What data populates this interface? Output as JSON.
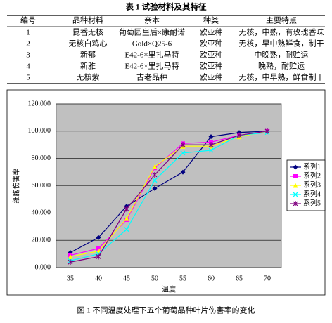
{
  "table": {
    "caption": "表 1  试验材料及其特征",
    "header": [
      "编号",
      "品种材料",
      "亲本",
      "种类",
      "主要特点"
    ],
    "rows": [
      [
        "1",
        "昆香无核",
        "葡萄园皇后×康耐诺",
        "欧亚种",
        "无核，中熟，有玫瑰香味"
      ],
      [
        "2",
        "无核白鸡心",
        "Gold×Q25-6",
        "欧亚种",
        "无核，早中熟鲜食，制干"
      ],
      [
        "3",
        "新郁",
        "E42-6×里扎马特",
        "欧亚种",
        "中晚熟，耐贮运"
      ],
      [
        "4",
        "新雅",
        "E42-6×里扎马特",
        "欧亚种",
        "晚熟，耐贮运"
      ],
      [
        "5",
        "无核紫",
        "古老品种",
        "欧亚种",
        "无核，中早熟，鲜食制干"
      ]
    ]
  },
  "chart_data": {
    "type": "line",
    "x_label": "温度",
    "y_label": "细胞伤害率",
    "categories": [
      "35",
      "40",
      "45",
      "50",
      "55",
      "60",
      "65",
      "70"
    ],
    "ylim": [
      0,
      120
    ],
    "yticks": [
      {
        "value": 0,
        "label": "0.000"
      },
      {
        "value": 20,
        "label": "20.000"
      },
      {
        "value": 40,
        "label": "40.000"
      },
      {
        "value": 60,
        "label": "60.000"
      },
      {
        "value": 80,
        "label": "80.000"
      },
      {
        "value": 100,
        "label": "100.000"
      },
      {
        "value": 120,
        "label": "120.000"
      }
    ],
    "grid": true,
    "legend": "right",
    "plot_background": "#c0c0c0",
    "series": [
      {
        "name": "系列1",
        "color": "#000080",
        "marker": "diamond",
        "values": [
          11,
          22,
          45,
          58,
          70,
          96,
          99,
          100
        ]
      },
      {
        "name": "系列2",
        "color": "#ff00ff",
        "marker": "square",
        "values": [
          9,
          14,
          35,
          73,
          91,
          92,
          97,
          100
        ]
      },
      {
        "name": "系列3",
        "color": "#ffff00",
        "marker": "triangle",
        "values": [
          8,
          12,
          36,
          74,
          89,
          89,
          96,
          100
        ]
      },
      {
        "name": "系列4",
        "color": "#00ffff",
        "marker": "x",
        "values": [
          5,
          10,
          28,
          64,
          84,
          86,
          97,
          99
        ]
      },
      {
        "name": "系列5",
        "color": "#800080",
        "marker": "star",
        "values": [
          4,
          8,
          43,
          68,
          90,
          90,
          97,
          100
        ]
      }
    ]
  },
  "figure_caption": "图 1   不同温度处理下五个葡萄品种叶片伤害率的变化"
}
